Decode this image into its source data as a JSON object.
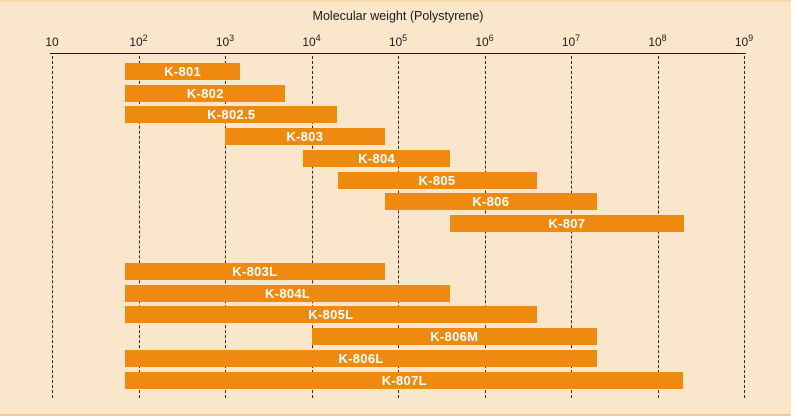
{
  "chart_data": {
    "type": "bar",
    "orientation": "horizontal-range",
    "title": "Molecular weight (Polystyrene)",
    "x_axis": {
      "scale": "log",
      "min": 10,
      "max": 1000000000,
      "tick_base": "10",
      "tick_exponents": [
        1,
        2,
        3,
        4,
        5,
        6,
        7,
        8,
        9
      ],
      "gridlines": "dashed-vertical"
    },
    "bars": [
      {
        "label": "K-801",
        "range": [
          70,
          1500
        ],
        "group": 0
      },
      {
        "label": "K-802",
        "range": [
          70,
          5000
        ],
        "group": 0
      },
      {
        "label": "K-802.5",
        "range": [
          70,
          20000
        ],
        "group": 0
      },
      {
        "label": "K-803",
        "range": [
          1000,
          70000
        ],
        "group": 0
      },
      {
        "label": "K-804",
        "range": [
          8000,
          400000
        ],
        "group": 0
      },
      {
        "label": "K-805",
        "range": [
          20000,
          4000000
        ],
        "group": 0
      },
      {
        "label": "K-806",
        "range": [
          70000,
          20000000
        ],
        "group": 0
      },
      {
        "label": "K-807",
        "range": [
          400000,
          200000000
        ],
        "group": 0
      },
      {
        "label": "K-803L",
        "range": [
          70,
          70000
        ],
        "group": 1
      },
      {
        "label": "K-804L",
        "range": [
          70,
          400000
        ],
        "group": 1
      },
      {
        "label": "K-805L",
        "range": [
          70,
          4000000
        ],
        "group": 1
      },
      {
        "label": "K-806M",
        "range": [
          10000,
          20000000
        ],
        "group": 1
      },
      {
        "label": "K-806L",
        "range": [
          70,
          20000000
        ],
        "group": 1
      },
      {
        "label": "K-807L",
        "range": [
          70,
          200000000
        ],
        "group": 1
      }
    ],
    "colors": {
      "background": "#FAE7CB",
      "bar": "#EE8A10",
      "bar_label": "#FFFFFF",
      "axis": "#1A1A1A"
    },
    "legend": null
  }
}
